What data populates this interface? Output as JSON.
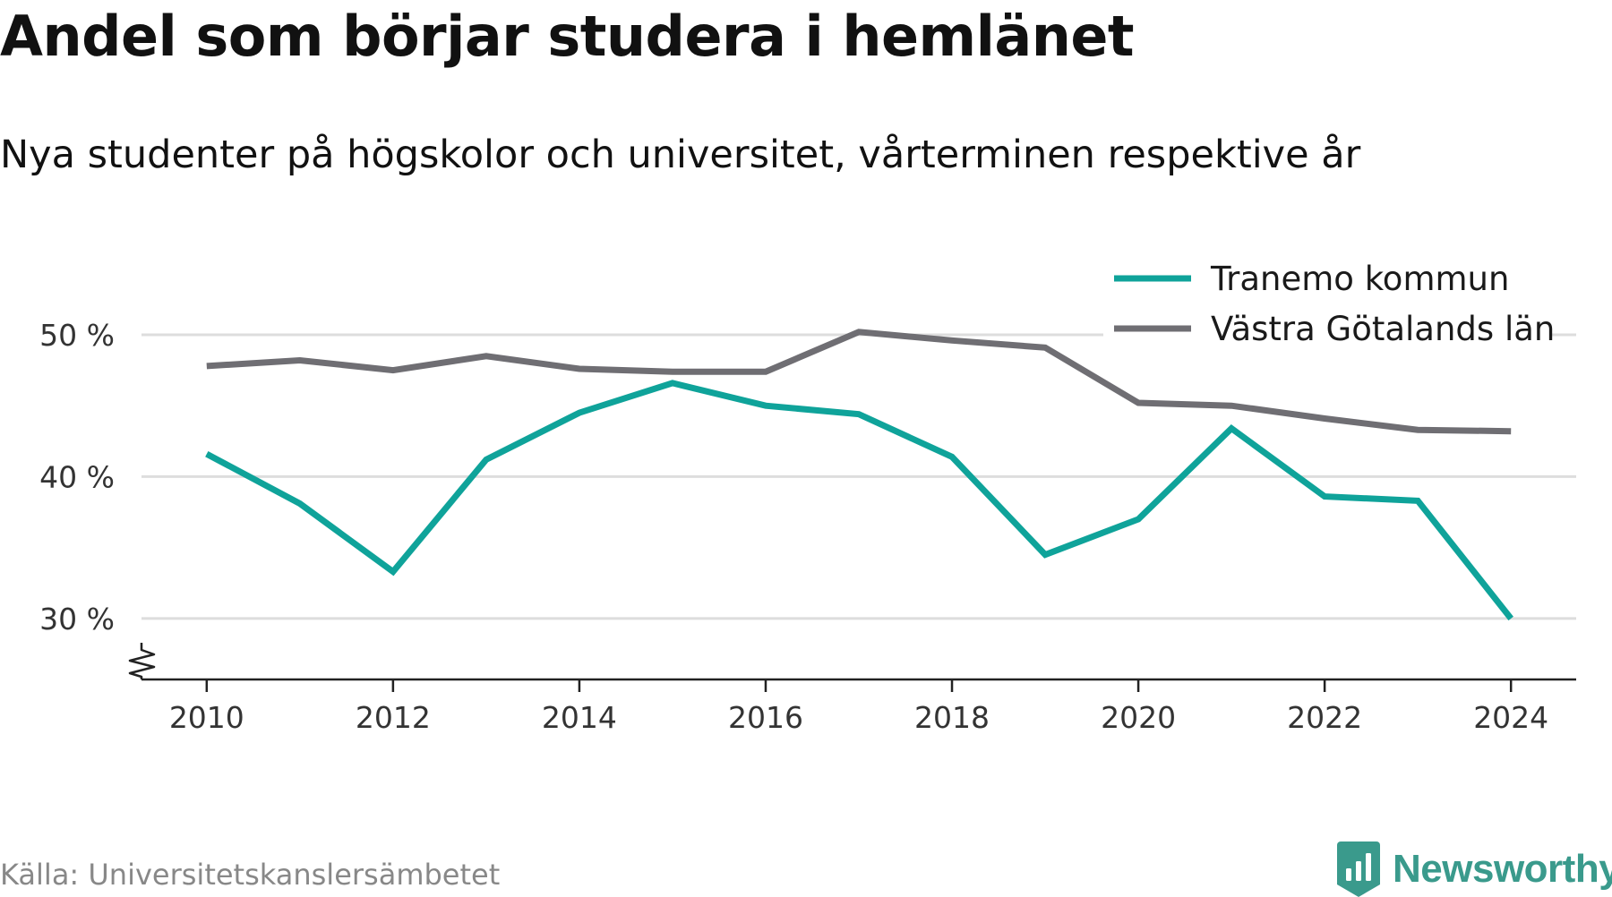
{
  "title": "Andel som börjar studera i hemlänet",
  "subtitle": "Nya studenter på högskolor och universitet, vårterminen respektive år",
  "source": "Källa: Universitetskanslersämbetet",
  "brand": "Newsworthy",
  "colors": {
    "tranemo": "#0fa39a",
    "vastra": "#6f6e73",
    "grid": "#dddddd",
    "axis": "#222222",
    "tick_text": "#333333",
    "brand": "#3a9a8c"
  },
  "chart_data": {
    "type": "line",
    "x": [
      2010,
      2011,
      2012,
      2013,
      2014,
      2015,
      2016,
      2017,
      2018,
      2019,
      2020,
      2021,
      2022,
      2023,
      2024
    ],
    "series": [
      {
        "name": "Tranemo kommun",
        "color": "#0fa39a",
        "values": [
          41.6,
          38.1,
          33.3,
          41.2,
          44.5,
          46.6,
          45.0,
          44.4,
          41.4,
          34.5,
          37.0,
          43.4,
          38.6,
          38.3,
          30.0
        ]
      },
      {
        "name": "Västra Götalands län",
        "color": "#6f6e73",
        "values": [
          47.8,
          48.2,
          47.5,
          48.5,
          47.6,
          47.4,
          47.4,
          50.2,
          49.6,
          49.1,
          45.2,
          45.0,
          44.1,
          43.3,
          43.2
        ]
      }
    ],
    "xticks": [
      2010,
      2012,
      2014,
      2016,
      2018,
      2020,
      2022,
      2024
    ],
    "xtick_labels": [
      "2010",
      "2012",
      "2014",
      "2016",
      "2018",
      "2020",
      "2022",
      "2024"
    ],
    "yticks": [
      30,
      40,
      50
    ],
    "ytick_labels": [
      "30 %",
      "40 %",
      "50 %"
    ],
    "xlim": [
      2009.3,
      2024.7
    ],
    "ylim": [
      25.7,
      50
    ],
    "y_axis_break": true,
    "grid": true,
    "legend": "top-right"
  }
}
